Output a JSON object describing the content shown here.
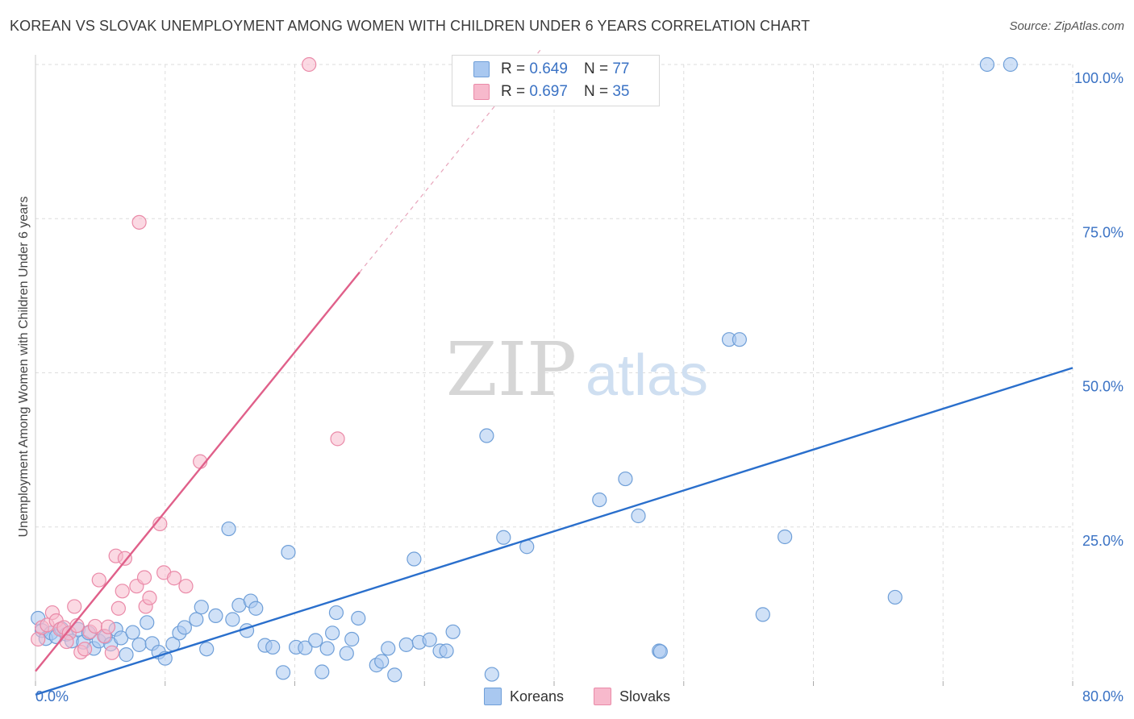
{
  "title": "KOREAN VS SLOVAK UNEMPLOYMENT AMONG WOMEN WITH CHILDREN UNDER 6 YEARS CORRELATION CHART",
  "source": "Source: ZipAtlas.com",
  "watermark": {
    "zip": "ZIP",
    "atlas": "atlas"
  },
  "colors": {
    "koreans_fill": "#a9c8f0",
    "koreans_stroke": "#6f9fd8",
    "koreans_line": "#2a6fcc",
    "slovaks_fill": "#f7b9cc",
    "slovaks_stroke": "#ea8aa8",
    "slovaks_line": "#e0608a",
    "tick_label": "#3a72c4",
    "grid": "#dddddd"
  },
  "stats": {
    "row1": {
      "r_label": "R = ",
      "r_value": "0.649",
      "n_label": "N = ",
      "n_value": "77"
    },
    "row2": {
      "r_label": "R = ",
      "r_value": "0.697",
      "n_label": "N = ",
      "n_value": "35"
    }
  },
  "legend": {
    "koreans": "Koreans",
    "slovaks": "Slovaks"
  },
  "chart_data": {
    "type": "scatter",
    "title": "KOREAN VS SLOVAK UNEMPLOYMENT AMONG WOMEN WITH CHILDREN UNDER 6 YEARS CORRELATION CHART",
    "xlabel": "",
    "ylabel": "Unemployment Among Women with Children Under 6 years",
    "xlim": [
      0,
      80
    ],
    "ylim": [
      0,
      100
    ],
    "x_tick_labels": [
      "0.0%",
      "80.0%"
    ],
    "y_ticks": [
      25,
      50,
      75,
      100
    ],
    "y_tick_labels": [
      "25.0%",
      "50.0%",
      "75.0%",
      "100.0%"
    ],
    "grid": true,
    "series": [
      {
        "name": "Koreans",
        "r": 0.649,
        "n": 77,
        "trendline": {
          "x": [
            0,
            80
          ],
          "y": [
            -2.2,
            50.8
          ]
        },
        "points": [
          [
            0.2,
            10.2
          ],
          [
            0.5,
            8.2
          ],
          [
            0.8,
            6.9
          ],
          [
            1.2,
            7.8
          ],
          [
            1.6,
            7.2
          ],
          [
            2.0,
            8.5
          ],
          [
            2.4,
            7.6
          ],
          [
            2.8,
            6.5
          ],
          [
            3.3,
            8.4
          ],
          [
            3.7,
            6.3
          ],
          [
            4.1,
            7.8
          ],
          [
            4.5,
            5.3
          ],
          [
            4.9,
            6.5
          ],
          [
            5.4,
            7.2
          ],
          [
            5.8,
            6.0
          ],
          [
            6.2,
            8.4
          ],
          [
            6.6,
            7.0
          ],
          [
            7.0,
            4.3
          ],
          [
            7.5,
            7.9
          ],
          [
            8.0,
            5.9
          ],
          [
            8.6,
            9.5
          ],
          [
            9.0,
            6.1
          ],
          [
            9.5,
            4.7
          ],
          [
            10.0,
            3.7
          ],
          [
            10.6,
            6.0
          ],
          [
            11.1,
            7.8
          ],
          [
            11.5,
            8.7
          ],
          [
            12.4,
            10.0
          ],
          [
            12.8,
            12.0
          ],
          [
            13.2,
            5.2
          ],
          [
            13.9,
            10.6
          ],
          [
            14.9,
            24.7
          ],
          [
            15.2,
            10.0
          ],
          [
            15.7,
            12.3
          ],
          [
            16.3,
            8.2
          ],
          [
            16.6,
            13.0
          ],
          [
            17.0,
            11.8
          ],
          [
            17.7,
            5.8
          ],
          [
            18.3,
            5.5
          ],
          [
            19.1,
            1.4
          ],
          [
            19.5,
            20.9
          ],
          [
            20.1,
            5.5
          ],
          [
            20.8,
            5.4
          ],
          [
            21.6,
            6.6
          ],
          [
            22.1,
            1.5
          ],
          [
            22.5,
            5.3
          ],
          [
            22.9,
            7.8
          ],
          [
            23.2,
            11.1
          ],
          [
            24.0,
            4.5
          ],
          [
            24.4,
            6.8
          ],
          [
            24.9,
            10.2
          ],
          [
            26.3,
            2.6
          ],
          [
            26.7,
            3.2
          ],
          [
            27.2,
            5.3
          ],
          [
            27.7,
            1.0
          ],
          [
            28.6,
            5.9
          ],
          [
            29.2,
            19.8
          ],
          [
            29.6,
            6.3
          ],
          [
            30.4,
            6.7
          ],
          [
            31.2,
            4.9
          ],
          [
            31.7,
            4.9
          ],
          [
            32.2,
            8.0
          ],
          [
            34.8,
            39.8
          ],
          [
            35.2,
            1.1
          ],
          [
            36.1,
            23.3
          ],
          [
            37.9,
            21.8
          ],
          [
            43.5,
            29.4
          ],
          [
            45.5,
            32.8
          ],
          [
            46.5,
            26.8
          ],
          [
            48.1,
            4.9
          ],
          [
            48.2,
            4.8
          ],
          [
            53.5,
            55.4
          ],
          [
            54.3,
            55.4
          ],
          [
            56.1,
            10.8
          ],
          [
            57.8,
            23.4
          ],
          [
            66.3,
            13.6
          ],
          [
            73.4,
            100
          ],
          [
            75.2,
            100
          ]
        ]
      },
      {
        "name": "Slovaks",
        "r": 0.697,
        "n": 35,
        "trendline": {
          "x": [
            0,
            25
          ],
          "y": [
            1.6,
            66.3
          ]
        },
        "trendline_dashed": {
          "x": [
            25,
            39
          ],
          "y": [
            66.3,
            102.5
          ]
        },
        "points": [
          [
            0.2,
            6.8
          ],
          [
            0.5,
            8.7
          ],
          [
            0.9,
            9.1
          ],
          [
            1.3,
            11.1
          ],
          [
            1.6,
            9.8
          ],
          [
            1.9,
            8.4
          ],
          [
            2.2,
            8.7
          ],
          [
            2.6,
            7.8
          ],
          [
            3.0,
            12.1
          ],
          [
            3.2,
            9.0
          ],
          [
            3.5,
            4.7
          ],
          [
            3.8,
            5.2
          ],
          [
            4.2,
            8.0
          ],
          [
            4.6,
            8.9
          ],
          [
            4.9,
            16.4
          ],
          [
            5.3,
            7.3
          ],
          [
            5.6,
            8.8
          ],
          [
            5.9,
            4.6
          ],
          [
            6.2,
            20.3
          ],
          [
            6.4,
            11.8
          ],
          [
            6.7,
            14.6
          ],
          [
            6.9,
            19.9
          ],
          [
            7.8,
            15.4
          ],
          [
            8.0,
            74.4
          ],
          [
            8.4,
            16.8
          ],
          [
            8.5,
            12.1
          ],
          [
            8.8,
            13.5
          ],
          [
            9.6,
            25.5
          ],
          [
            9.9,
            17.6
          ],
          [
            10.7,
            16.7
          ],
          [
            11.6,
            15.4
          ],
          [
            12.7,
            35.6
          ],
          [
            21.1,
            100
          ],
          [
            23.3,
            39.3
          ],
          [
            2.4,
            6.4
          ]
        ]
      }
    ]
  }
}
